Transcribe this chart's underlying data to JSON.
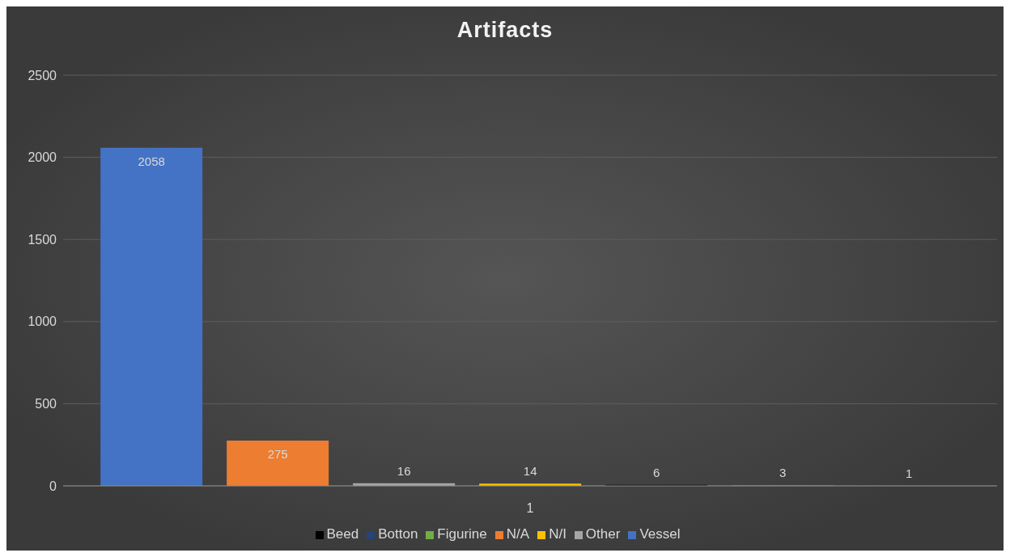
{
  "chart_data": {
    "type": "bar",
    "title": "Artifacts",
    "categories": [
      "1"
    ],
    "series": [
      {
        "name": "Vessel",
        "color": "#4472c4",
        "values": [
          2058
        ]
      },
      {
        "name": "N/A",
        "color": "#ed7d31",
        "values": [
          275
        ]
      },
      {
        "name": "Other",
        "color": "#a5a5a5",
        "values": [
          16
        ]
      },
      {
        "name": "N/I",
        "color": "#ffc000",
        "values": [
          14
        ]
      },
      {
        "name": "Beed",
        "color": "#000000",
        "values": [
          6
        ]
      },
      {
        "name": "Figurine",
        "color": "#70ad47",
        "values": [
          3
        ]
      },
      {
        "name": "Botton",
        "color": "#264478",
        "values": [
          1
        ]
      }
    ],
    "ylim": [
      0,
      2500
    ],
    "yticks": [
      0,
      500,
      1000,
      1500,
      2000,
      2500
    ],
    "grid": "y",
    "legend": "bottom",
    "data_labels": true
  }
}
